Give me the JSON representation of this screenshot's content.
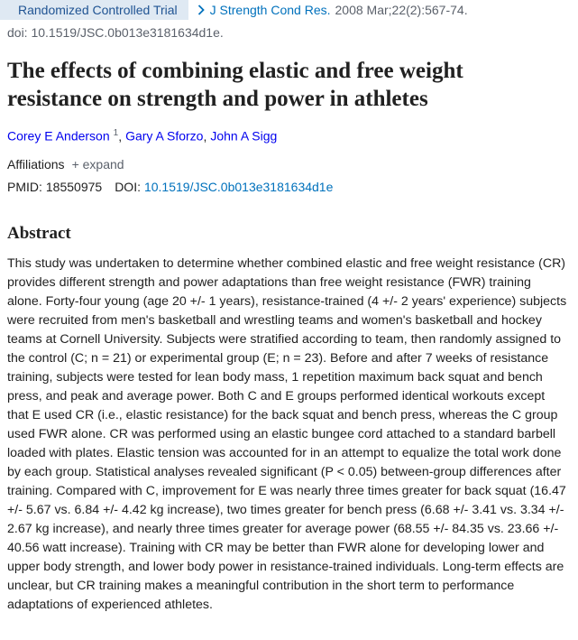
{
  "header": {
    "publication_type": "Randomized Controlled Trial",
    "journal": "J Strength Cond Res.",
    "citation": "2008 Mar;22(2):567-74.",
    "doi_line": "doi: 10.1519/JSC.0b013e3181634d1e."
  },
  "title": "The effects of combining elastic and free weight resistance on strength and power in athletes",
  "authors": [
    {
      "name": "Corey E Anderson",
      "affiliation_ref": "1",
      "separator": ","
    },
    {
      "name": "Gary A Sforzo",
      "separator": ","
    },
    {
      "name": "John A Sigg"
    }
  ],
  "affiliations": {
    "label": "Affiliations",
    "toggle": "+ expand"
  },
  "identifiers": {
    "pmid_label": "PMID:",
    "pmid": "18550975",
    "doi_label": "DOI:",
    "doi": "10.1519/JSC.0b013e3181634d1e"
  },
  "abstract": {
    "heading": "Abstract",
    "text": "This study was undertaken to determine whether combined elastic and free weight resistance (CR) provides different strength and power adaptations than free weight resistance (FWR) training alone. Forty-four young (age 20 +/- 1 years), resistance-trained (4 +/- 2 years' experience) subjects were recruited from men's basketball and wrestling teams and women's basketball and hockey teams at Cornell University. Subjects were stratified according to team, then randomly assigned to the control (C; n = 21) or experimental group (E; n = 23). Before and after 7 weeks of resistance training, subjects were tested for lean body mass, 1 repetition maximum back squat and bench press, and peak and average power. Both C and E groups performed identical workouts except that E used CR (i.e., elastic resistance) for the back squat and bench press, whereas the C group used FWR alone. CR was performed using an elastic bungee cord attached to a standard barbell loaded with plates. Elastic tension was accounted for in an attempt to equalize the total work done by each group. Statistical analyses revealed significant (P < 0.05) between-group differences after training. Compared with C, improvement for E was nearly three times greater for back squat (16.47 +/- 5.67 vs. 6.84 +/- 4.42 kg increase), two times greater for bench press (6.68 +/- 3.41 vs. 3.34 +/- 2.67 kg increase), and nearly three times greater for average power (68.55 +/- 84.35 vs. 23.66 +/- 40.56 watt increase). Training with CR may be better than FWR alone for developing lower and upper body strength, and lower body power in resistance-trained individuals. Long-term effects are unclear, but CR training makes a meaningful contribution in the short term to performance adaptations of experienced athletes."
  }
}
